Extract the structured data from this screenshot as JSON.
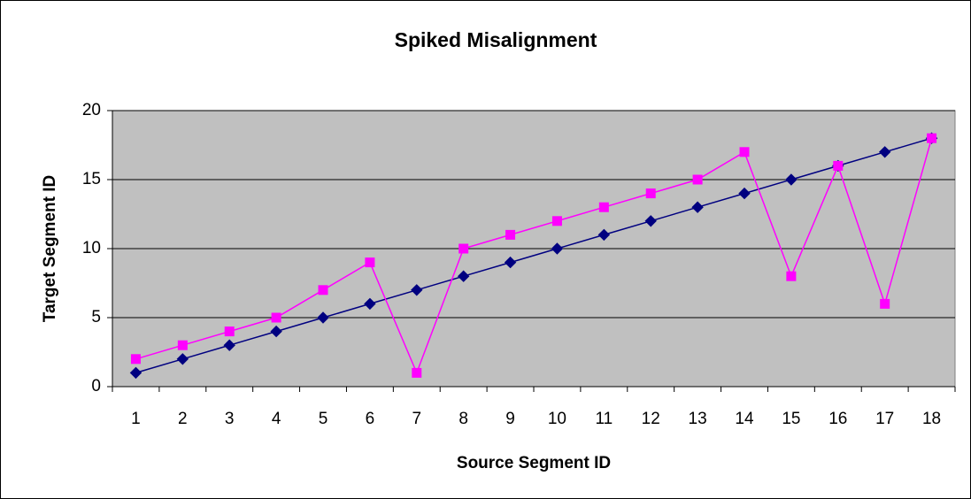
{
  "chart_data": {
    "type": "line",
    "title": "Spiked Misalignment",
    "x_label": "Source Segment ID",
    "y_label": "Target Segment ID",
    "categories": [
      "1",
      "2",
      "3",
      "4",
      "5",
      "6",
      "7",
      "8",
      "9",
      "10",
      "11",
      "12",
      "13",
      "14",
      "15",
      "16",
      "17",
      "18"
    ],
    "series": [
      {
        "color": "#000080",
        "marker": "diamond",
        "values": [
          1,
          2,
          3,
          4,
          5,
          6,
          7,
          8,
          9,
          10,
          11,
          12,
          13,
          14,
          15,
          16,
          17,
          18
        ]
      },
      {
        "color": "#ff00ff",
        "marker": "square",
        "values": [
          2,
          3,
          4,
          5,
          7,
          9,
          1,
          10,
          11,
          12,
          13,
          14,
          15,
          17,
          8,
          16,
          6,
          18
        ]
      }
    ],
    "ylim": [
      0,
      20
    ],
    "yticks": [
      0,
      5,
      10,
      15,
      20
    ],
    "grid": true,
    "plot_background": "#c0c0c0"
  }
}
